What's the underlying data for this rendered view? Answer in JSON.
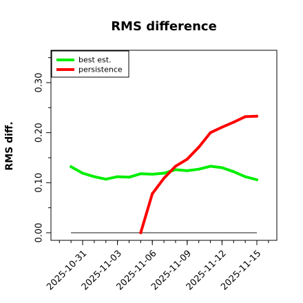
{
  "chart_data": {
    "type": "line",
    "title": "RMS difference",
    "xlabel": "",
    "ylabel": "RMS diff.",
    "ylim": [
      -0.01,
      0.37
    ],
    "xlim": [
      "2025-10-28",
      "2025-11-16"
    ],
    "yticks": [
      0.0,
      0.1,
      0.2,
      0.3
    ],
    "ytick_labels": [
      "0.00",
      "0.10",
      "0.20",
      "0.30"
    ],
    "xticks": [
      "2025-10-31",
      "2025-11-03",
      "2025-11-06",
      "2025-11-09",
      "2025-11-12",
      "2025-11-15"
    ],
    "xtick_labels": [
      "2025-10-31",
      "2025-11-03",
      "2025-11-06",
      "2025-11-09",
      "2025-11-12",
      "2025-11-15"
    ],
    "legend_position": "top-left",
    "grid": false,
    "baseline": 0.0,
    "series": [
      {
        "name": "best est.",
        "color": "#00ee00",
        "x": [
          "2025-10-30",
          "2025-10-31",
          "2025-11-01",
          "2025-11-02",
          "2025-11-03",
          "2025-11-04",
          "2025-11-05",
          "2025-11-06",
          "2025-11-07",
          "2025-11-08",
          "2025-11-09",
          "2025-11-10",
          "2025-11-11",
          "2025-11-12",
          "2025-11-13",
          "2025-11-14",
          "2025-11-15"
        ],
        "values": [
          0.132,
          0.119,
          0.112,
          0.107,
          0.112,
          0.111,
          0.118,
          0.117,
          0.119,
          0.126,
          0.124,
          0.127,
          0.133,
          0.13,
          0.122,
          0.112,
          0.106
        ]
      },
      {
        "name": "persistence",
        "color": "#ff0000",
        "x": [
          "2025-11-05",
          "2025-11-06",
          "2025-11-07",
          "2025-11-08",
          "2025-11-09",
          "2025-11-10",
          "2025-11-11",
          "2025-11-12",
          "2025-11-13",
          "2025-11-14",
          "2025-11-15"
        ],
        "values": [
          0.0,
          0.078,
          0.109,
          0.133,
          0.147,
          0.171,
          0.2,
          0.211,
          0.221,
          0.232,
          0.233
        ]
      }
    ]
  }
}
